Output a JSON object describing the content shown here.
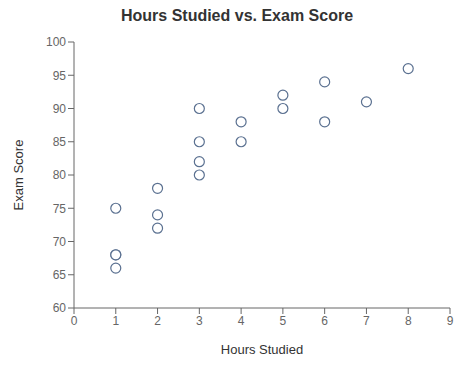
{
  "chart_data": {
    "type": "scatter",
    "title": "Hours Studied vs. Exam Score",
    "xlabel": "Hours Studied",
    "ylabel": "Exam Score",
    "x": [
      1,
      1,
      1,
      1,
      2,
      2,
      2,
      3,
      3,
      3,
      3,
      4,
      4,
      5,
      5,
      6,
      6,
      7,
      8
    ],
    "y": [
      75,
      68,
      66,
      68,
      78,
      74,
      72,
      90,
      85,
      82,
      80,
      88,
      85,
      92,
      90,
      94,
      88,
      91,
      96
    ],
    "xlim": [
      0,
      9
    ],
    "ylim": [
      60,
      100
    ],
    "xticks": [
      0,
      1,
      2,
      3,
      4,
      5,
      6,
      7,
      8,
      9
    ],
    "yticks": [
      60,
      65,
      70,
      75,
      80,
      85,
      90,
      95,
      100
    ],
    "color": "#5a7090",
    "marker": "circle",
    "grid": false
  }
}
